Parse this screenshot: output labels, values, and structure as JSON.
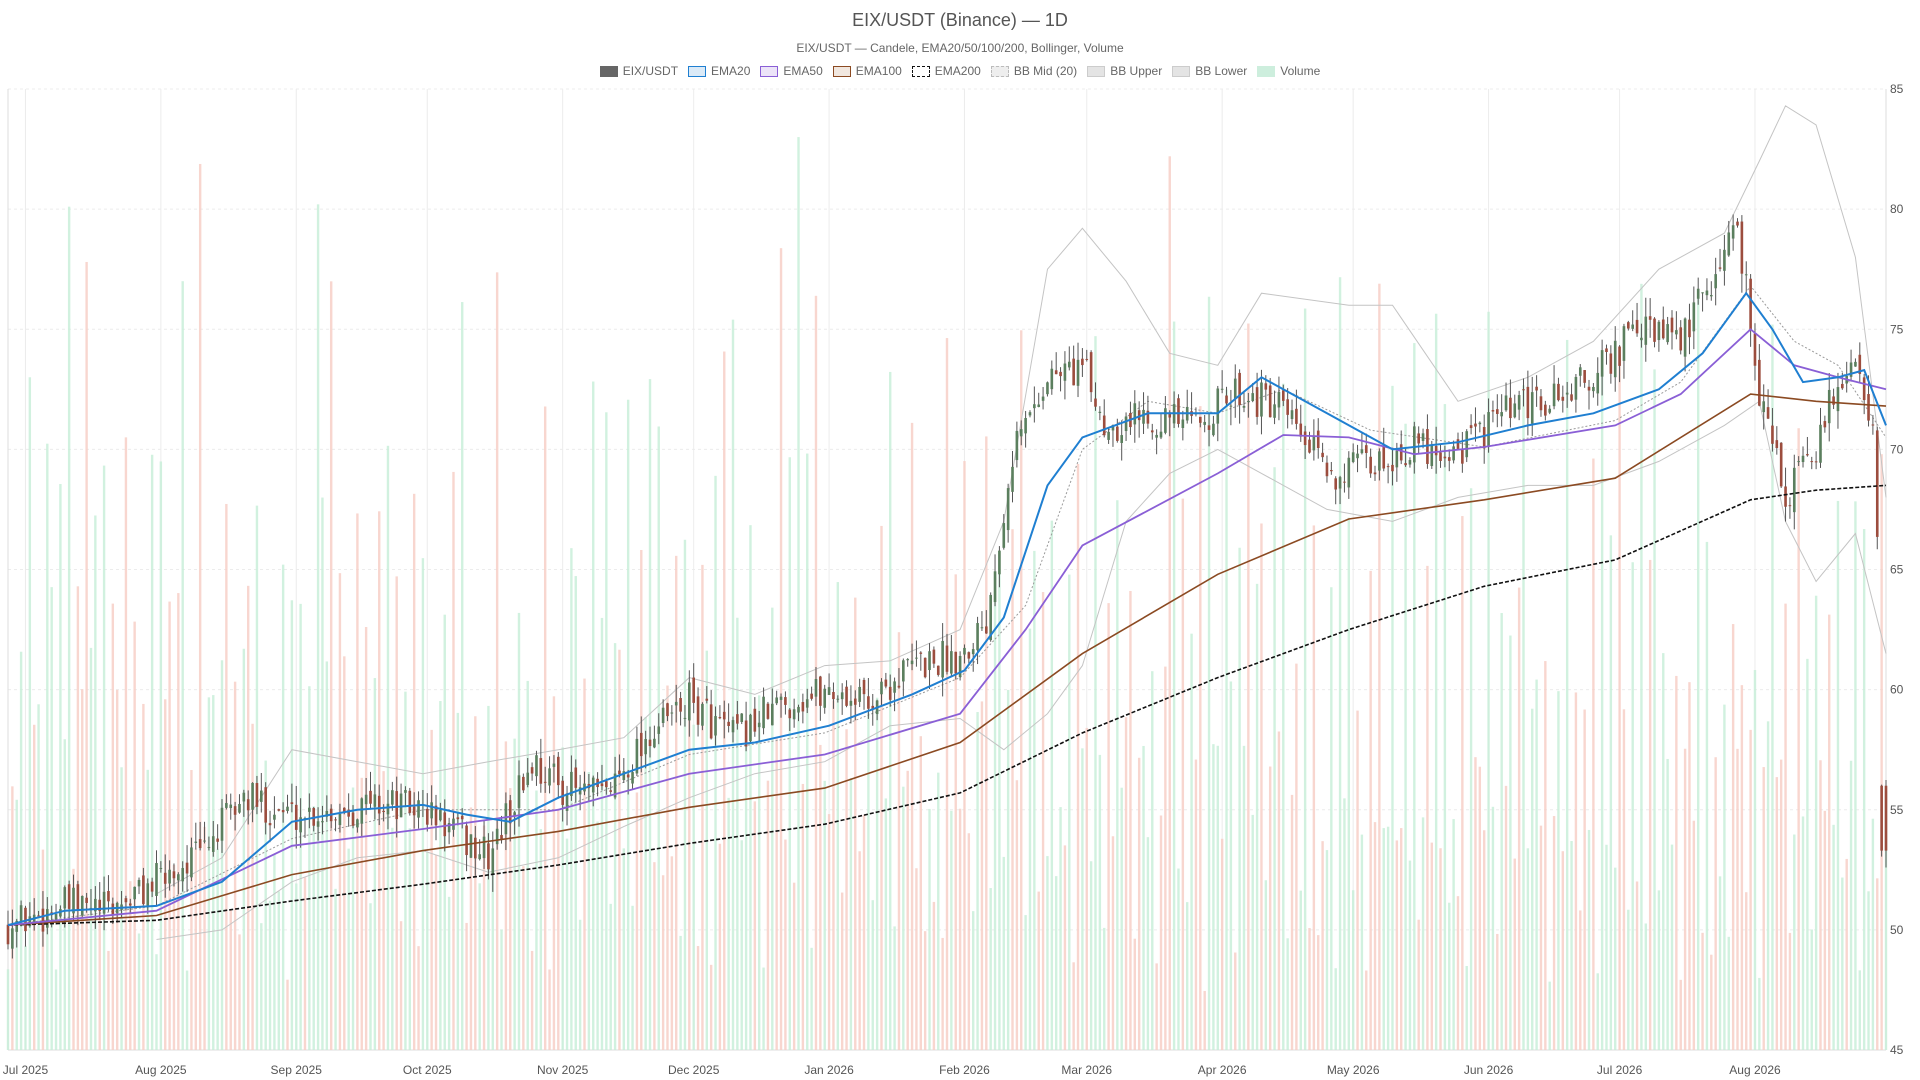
{
  "chart_data": {
    "type": "candlestick",
    "title": "EIX/USDT (Binance) — 1D",
    "subtitle": "EIX/USDT — Candele, EMA20/50/100/200, Bollinger, Volume",
    "legend": [
      {
        "label": "EIX/USDT",
        "color": "#666666",
        "fill": "#666666",
        "dash": ""
      },
      {
        "label": "EMA20",
        "color": "#1f7fd1",
        "fill": "#dbeaf7",
        "dash": ""
      },
      {
        "label": "EMA50",
        "color": "#8a5fd6",
        "fill": "#ece4f8",
        "dash": ""
      },
      {
        "label": "EMA100",
        "color": "#8b4a22",
        "fill": "#f1e7df",
        "dash": ""
      },
      {
        "label": "EMA200",
        "color": "#111111",
        "fill": "#ffffff",
        "dash": "4,2"
      },
      {
        "label": "BB Mid (20)",
        "color": "#bbbbbb",
        "fill": "#eeeeee",
        "dash": "2,2"
      },
      {
        "label": "BB Upper",
        "color": "#cccccc",
        "fill": "#e4e4e4",
        "dash": ""
      },
      {
        "label": "BB Lower",
        "color": "#cccccc",
        "fill": "#e4e4e4",
        "dash": ""
      },
      {
        "label": "Volume",
        "color": "#cdeedd",
        "fill": "#cdeedd",
        "dash": ""
      }
    ],
    "y_axis": {
      "min": 45,
      "max": 85,
      "ticks": [
        45,
        50,
        55,
        60,
        65,
        70,
        75,
        80,
        85
      ],
      "position": "right"
    },
    "x_axis": {
      "start": "2025-06-27",
      "end": "2026-08-31",
      "ticks": [
        {
          "label": "Jul 2025",
          "date": "2025-07-01"
        },
        {
          "label": "Aug 2025",
          "date": "2025-08-01"
        },
        {
          "label": "Sep 2025",
          "date": "2025-09-01"
        },
        {
          "label": "Oct 2025",
          "date": "2025-10-01"
        },
        {
          "label": "Nov 2025",
          "date": "2025-11-01"
        },
        {
          "label": "Dec 2025",
          "date": "2025-12-01"
        },
        {
          "label": "Jan 2026",
          "date": "2026-01-01"
        },
        {
          "label": "Feb 2026",
          "date": "2026-02-01"
        },
        {
          "label": "Mar 2026",
          "date": "2026-03-01"
        },
        {
          "label": "Apr 2026",
          "date": "2026-04-01"
        },
        {
          "label": "May 2026",
          "date": "2026-05-01"
        },
        {
          "label": "Jun 2026",
          "date": "2026-06-01"
        },
        {
          "label": "Jul 2026",
          "date": "2026-07-01"
        },
        {
          "label": "Aug 2026",
          "date": "2026-08-01"
        }
      ]
    },
    "close_path": [
      [
        "2025-06-27",
        50.2
      ],
      [
        "2025-07-10",
        51.0
      ],
      [
        "2025-07-20",
        50.8
      ],
      [
        "2025-07-31",
        52.0
      ],
      [
        "2025-08-10",
        53.2
      ],
      [
        "2025-08-20",
        55.5
      ],
      [
        "2025-08-31",
        54.8
      ],
      [
        "2025-09-10",
        55.0
      ],
      [
        "2025-09-20",
        55.3
      ],
      [
        "2025-09-30",
        55.0
      ],
      [
        "2025-10-08",
        54.0
      ],
      [
        "2025-10-15",
        53.0
      ],
      [
        "2025-10-25",
        57.0
      ],
      [
        "2025-11-01",
        56.0
      ],
      [
        "2025-11-10",
        55.5
      ],
      [
        "2025-11-20",
        58.0
      ],
      [
        "2025-11-30",
        59.5
      ],
      [
        "2025-12-10",
        58.0
      ],
      [
        "2025-12-20",
        59.3
      ],
      [
        "2026-01-01",
        60.0
      ],
      [
        "2026-01-10",
        59.5
      ],
      [
        "2026-01-20",
        61.0
      ],
      [
        "2026-01-31",
        61.5
      ],
      [
        "2026-02-06",
        63.0
      ],
      [
        "2026-02-12",
        70.0
      ],
      [
        "2026-02-20",
        73.0
      ],
      [
        "2026-02-28",
        73.5
      ],
      [
        "2026-03-05",
        71.0
      ],
      [
        "2026-03-15",
        71.5
      ],
      [
        "2026-03-25",
        71.0
      ],
      [
        "2026-04-05",
        72.5
      ],
      [
        "2026-04-15",
        71.5
      ],
      [
        "2026-04-25",
        69.0
      ],
      [
        "2026-05-05",
        69.3
      ],
      [
        "2026-05-15",
        70.2
      ],
      [
        "2026-05-25",
        70.0
      ],
      [
        "2026-06-05",
        71.5
      ],
      [
        "2026-06-15",
        72.0
      ],
      [
        "2026-06-25",
        73.0
      ],
      [
        "2026-07-05",
        75.0
      ],
      [
        "2026-07-15",
        74.5
      ],
      [
        "2026-07-22",
        77.0
      ],
      [
        "2026-07-28",
        79.5
      ],
      [
        "2026-08-02",
        72.5
      ],
      [
        "2026-08-08",
        68.0
      ],
      [
        "2026-08-15",
        70.0
      ],
      [
        "2026-08-20",
        73.0
      ],
      [
        "2026-08-25",
        73.5
      ],
      [
        "2026-08-28",
        71.0
      ],
      [
        "2026-08-31",
        55.0
      ]
    ],
    "ema20": [
      [
        "2025-06-27",
        50.2
      ],
      [
        "2025-07-10",
        50.8
      ],
      [
        "2025-07-31",
        51.0
      ],
      [
        "2025-08-15",
        52.0
      ],
      [
        "2025-08-31",
        54.5
      ],
      [
        "2025-09-15",
        55.0
      ],
      [
        "2025-09-30",
        55.2
      ],
      [
        "2025-10-10",
        54.8
      ],
      [
        "2025-10-20",
        54.5
      ],
      [
        "2025-10-31",
        55.5
      ],
      [
        "2025-11-15",
        56.5
      ],
      [
        "2025-11-30",
        57.5
      ],
      [
        "2025-12-15",
        57.8
      ],
      [
        "2026-01-01",
        58.5
      ],
      [
        "2026-01-20",
        59.8
      ],
      [
        "2026-02-01",
        60.8
      ],
      [
        "2026-02-10",
        63.0
      ],
      [
        "2026-02-20",
        68.5
      ],
      [
        "2026-02-28",
        70.5
      ],
      [
        "2026-03-15",
        71.5
      ],
      [
        "2026-03-31",
        71.5
      ],
      [
        "2026-04-10",
        73.0
      ],
      [
        "2026-04-25",
        71.5
      ],
      [
        "2026-05-10",
        70.0
      ],
      [
        "2026-05-25",
        70.3
      ],
      [
        "2026-06-10",
        71.0
      ],
      [
        "2026-06-25",
        71.5
      ],
      [
        "2026-07-10",
        72.5
      ],
      [
        "2026-07-20",
        74.0
      ],
      [
        "2026-07-30",
        76.5
      ],
      [
        "2026-08-05",
        75.0
      ],
      [
        "2026-08-12",
        72.8
      ],
      [
        "2026-08-20",
        73.0
      ],
      [
        "2026-08-26",
        73.3
      ],
      [
        "2026-08-31",
        71.0
      ]
    ],
    "ema50": [
      [
        "2025-06-27",
        50.2
      ],
      [
        "2025-07-31",
        50.8
      ],
      [
        "2025-08-31",
        53.5
      ],
      [
        "2025-09-30",
        54.2
      ],
      [
        "2025-10-31",
        55.0
      ],
      [
        "2025-11-30",
        56.5
      ],
      [
        "2025-12-31",
        57.3
      ],
      [
        "2026-01-31",
        59.0
      ],
      [
        "2026-02-15",
        62.5
      ],
      [
        "2026-02-28",
        66.0
      ],
      [
        "2026-03-31",
        69.0
      ],
      [
        "2026-04-15",
        70.6
      ],
      [
        "2026-04-30",
        70.5
      ],
      [
        "2026-05-15",
        69.8
      ],
      [
        "2026-05-31",
        70.1
      ],
      [
        "2026-06-30",
        71.0
      ],
      [
        "2026-07-15",
        72.3
      ],
      [
        "2026-07-31",
        75.0
      ],
      [
        "2026-08-10",
        73.5
      ],
      [
        "2026-08-20",
        73.0
      ],
      [
        "2026-08-31",
        72.5
      ]
    ],
    "ema100": [
      [
        "2025-06-27",
        50.2
      ],
      [
        "2025-07-31",
        50.6
      ],
      [
        "2025-08-31",
        52.3
      ],
      [
        "2025-09-30",
        53.3
      ],
      [
        "2025-10-31",
        54.1
      ],
      [
        "2025-11-30",
        55.1
      ],
      [
        "2025-12-31",
        55.9
      ],
      [
        "2026-01-31",
        57.8
      ],
      [
        "2026-02-28",
        61.5
      ],
      [
        "2026-03-31",
        64.8
      ],
      [
        "2026-04-30",
        67.1
      ],
      [
        "2026-05-31",
        67.9
      ],
      [
        "2026-06-30",
        68.8
      ],
      [
        "2026-07-31",
        72.3
      ],
      [
        "2026-08-15",
        72.0
      ],
      [
        "2026-08-31",
        71.8
      ]
    ],
    "ema200": [
      [
        "2025-06-27",
        50.2
      ],
      [
        "2025-07-31",
        50.4
      ],
      [
        "2025-08-31",
        51.2
      ],
      [
        "2025-09-30",
        51.9
      ],
      [
        "2025-10-31",
        52.7
      ],
      [
        "2025-11-30",
        53.6
      ],
      [
        "2025-12-31",
        54.4
      ],
      [
        "2026-01-31",
        55.7
      ],
      [
        "2026-02-28",
        58.2
      ],
      [
        "2026-03-31",
        60.5
      ],
      [
        "2026-04-30",
        62.5
      ],
      [
        "2026-05-31",
        64.3
      ],
      [
        "2026-06-30",
        65.4
      ],
      [
        "2026-07-31",
        67.9
      ],
      [
        "2026-08-15",
        68.3
      ],
      [
        "2026-08-31",
        68.5
      ]
    ],
    "bb_mid": [
      [
        "2025-06-27",
        50.2
      ],
      [
        "2025-07-31",
        51.0
      ],
      [
        "2025-08-31",
        53.8
      ],
      [
        "2025-09-30",
        55.0
      ],
      [
        "2025-10-31",
        55.0
      ],
      [
        "2025-11-30",
        57.3
      ],
      [
        "2025-12-31",
        58.2
      ],
      [
        "2026-01-31",
        60.5
      ],
      [
        "2026-02-15",
        63.5
      ],
      [
        "2026-02-28",
        70.0
      ],
      [
        "2026-03-15",
        72.0
      ],
      [
        "2026-03-31",
        71.5
      ],
      [
        "2026-04-15",
        72.5
      ],
      [
        "2026-05-05",
        70.8
      ],
      [
        "2026-05-31",
        70.1
      ],
      [
        "2026-06-30",
        71.2
      ],
      [
        "2026-07-15",
        72.8
      ],
      [
        "2026-07-31",
        76.8
      ],
      [
        "2026-08-10",
        74.5
      ],
      [
        "2026-08-20",
        73.5
      ],
      [
        "2026-08-31",
        70.5
      ]
    ],
    "bb_upper": [
      [
        "2025-07-31",
        51.5
      ],
      [
        "2025-08-15",
        53.0
      ],
      [
        "2025-08-31",
        57.5
      ],
      [
        "2025-09-15",
        57.0
      ],
      [
        "2025-09-30",
        56.5
      ],
      [
        "2025-10-15",
        57.0
      ],
      [
        "2025-10-31",
        57.5
      ],
      [
        "2025-11-15",
        58.0
      ],
      [
        "2025-11-30",
        60.5
      ],
      [
        "2025-12-15",
        59.8
      ],
      [
        "2025-12-31",
        61.0
      ],
      [
        "2026-01-15",
        61.2
      ],
      [
        "2026-01-31",
        62.5
      ],
      [
        "2026-02-10",
        67.0
      ],
      [
        "2026-02-20",
        77.5
      ],
      [
        "2026-02-28",
        79.2
      ],
      [
        "2026-03-10",
        77.0
      ],
      [
        "2026-03-20",
        74.0
      ],
      [
        "2026-03-31",
        73.5
      ],
      [
        "2026-04-10",
        76.5
      ],
      [
        "2026-04-30",
        76.0
      ],
      [
        "2026-05-10",
        76.0
      ],
      [
        "2026-05-25",
        72.0
      ],
      [
        "2026-06-10",
        73.0
      ],
      [
        "2026-06-25",
        74.5
      ],
      [
        "2026-07-10",
        77.5
      ],
      [
        "2026-07-25",
        79.0
      ],
      [
        "2026-08-02",
        82.0
      ],
      [
        "2026-08-08",
        84.3
      ],
      [
        "2026-08-15",
        83.5
      ],
      [
        "2026-08-24",
        78.0
      ],
      [
        "2026-08-31",
        68.0
      ]
    ],
    "bb_lower": [
      [
        "2025-07-31",
        49.6
      ],
      [
        "2025-08-15",
        50.0
      ],
      [
        "2025-08-31",
        52.0
      ],
      [
        "2025-09-15",
        53.0
      ],
      [
        "2025-09-30",
        53.3
      ],
      [
        "2025-10-15",
        52.4
      ],
      [
        "2025-10-31",
        53.0
      ],
      [
        "2025-11-15",
        54.3
      ],
      [
        "2025-11-30",
        55.5
      ],
      [
        "2025-12-15",
        56.5
      ],
      [
        "2025-12-31",
        57.0
      ],
      [
        "2026-01-15",
        58.5
      ],
      [
        "2026-01-31",
        58.8
      ],
      [
        "2026-02-10",
        57.5
      ],
      [
        "2026-02-20",
        59.0
      ],
      [
        "2026-02-28",
        61.0
      ],
      [
        "2026-03-10",
        67.0
      ],
      [
        "2026-03-20",
        69.0
      ],
      [
        "2026-03-31",
        70.0
      ],
      [
        "2026-04-10",
        69.0
      ],
      [
        "2026-04-25",
        67.5
      ],
      [
        "2026-05-10",
        67.0
      ],
      [
        "2026-05-25",
        68.0
      ],
      [
        "2026-06-10",
        68.5
      ],
      [
        "2026-06-25",
        68.5
      ],
      [
        "2026-07-10",
        69.5
      ],
      [
        "2026-07-25",
        71.0
      ],
      [
        "2026-08-02",
        72.0
      ],
      [
        "2026-08-08",
        67.0
      ],
      [
        "2026-08-15",
        64.5
      ],
      [
        "2026-08-24",
        66.5
      ],
      [
        "2026-08-31",
        61.5
      ]
    ],
    "volume_scale": {
      "min": 0,
      "max": 100
    },
    "volume_pattern": [
      14,
      33,
      22,
      48,
      9,
      61,
      27,
      40,
      18,
      55,
      36,
      12,
      44,
      29,
      66,
      21,
      38,
      52,
      16,
      31,
      47,
      24,
      58,
      11,
      35,
      42,
      26,
      63,
      19,
      50
    ],
    "volume_spikes": [
      {
        "date": "2025-07-15",
        "value": 82,
        "up": false
      },
      {
        "date": "2025-08-06",
        "value": 80,
        "up": true
      },
      {
        "date": "2025-09-06",
        "value": 88,
        "up": true
      },
      {
        "date": "2025-12-10",
        "value": 76,
        "up": true
      },
      {
        "date": "2025-12-25",
        "value": 95,
        "up": true
      },
      {
        "date": "2026-03-20",
        "value": 93,
        "up": false
      },
      {
        "date": "2026-08-30",
        "value": 62,
        "up": false
      }
    ]
  }
}
